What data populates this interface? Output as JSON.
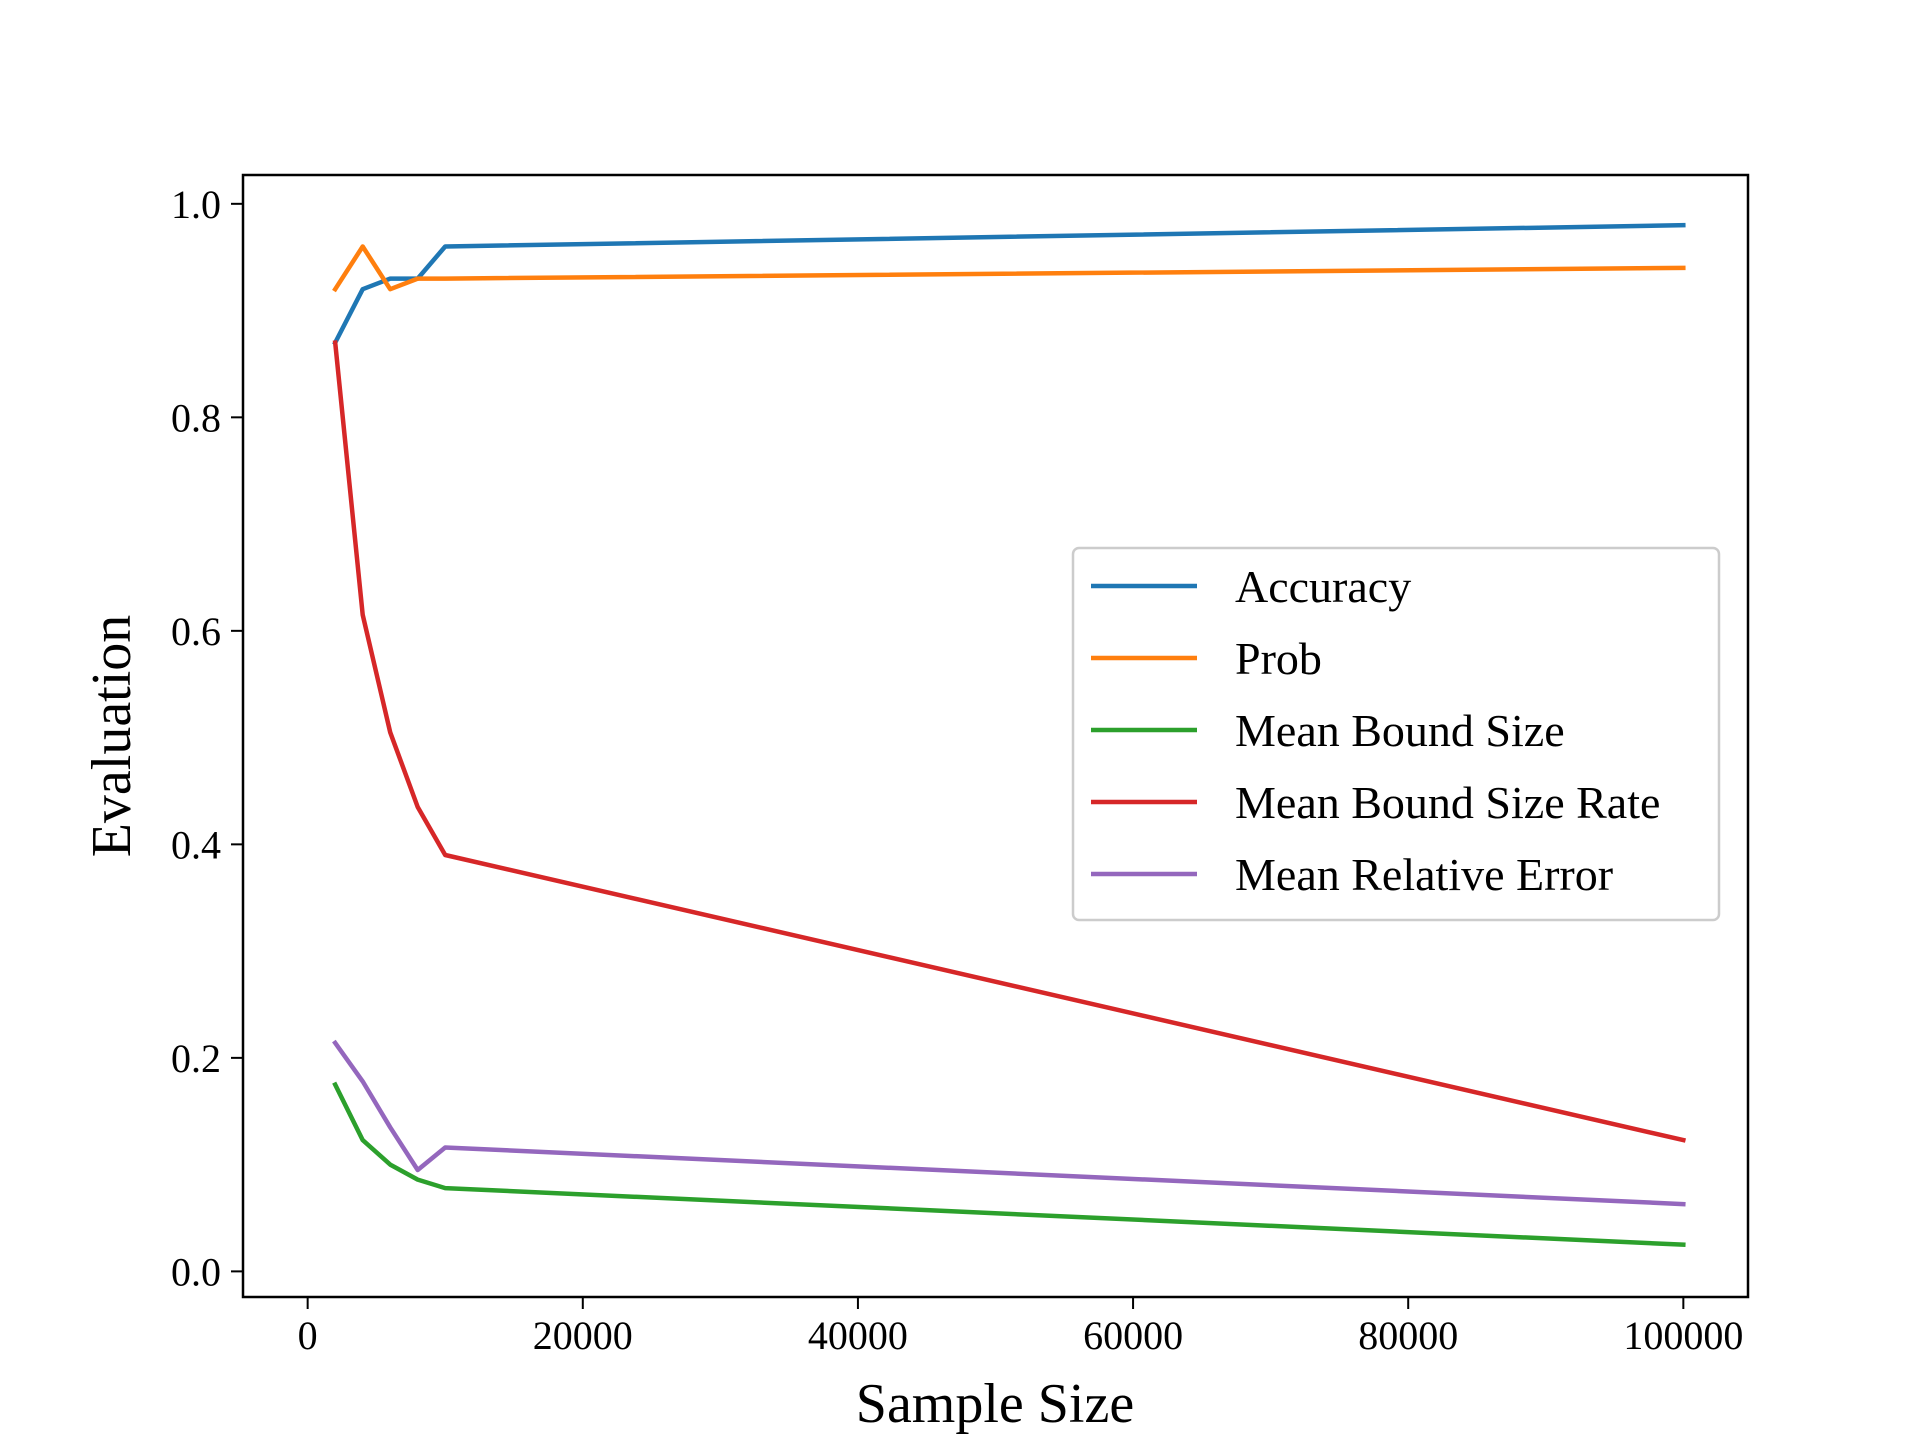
{
  "chart_data": {
    "type": "line",
    "title": "",
    "xlabel": "Sample Size",
    "ylabel": "Evaluation",
    "xlim": [
      -4700,
      104700
    ],
    "ylim": [
      -0.024,
      1.027
    ],
    "xticks": [
      0,
      20000,
      40000,
      60000,
      80000,
      100000
    ],
    "xtick_labels": [
      "0",
      "20000",
      "40000",
      "60000",
      "80000",
      "100000"
    ],
    "yticks": [
      0.0,
      0.2,
      0.4,
      0.6,
      0.8,
      1.0
    ],
    "ytick_labels": [
      "0.0",
      "0.2",
      "0.4",
      "0.6",
      "0.8",
      "1.0"
    ],
    "grid": false,
    "legend_position": "center-right",
    "x": [
      2000,
      4000,
      6000,
      8000,
      10000,
      100000
    ],
    "series": [
      {
        "name": "Accuracy",
        "color": "#1f77b4",
        "values": [
          0.87,
          0.92,
          0.93,
          0.93,
          0.96,
          0.98
        ]
      },
      {
        "name": "Prob",
        "color": "#ff7f0e",
        "values": [
          0.92,
          0.96,
          0.92,
          0.93,
          0.93,
          0.94
        ]
      },
      {
        "name": "Mean Bound Size",
        "color": "#2ca02c",
        "values": [
          0.175,
          0.123,
          0.1,
          0.086,
          0.078,
          0.025
        ]
      },
      {
        "name": "Mean Bound Size Rate",
        "color": "#d62728",
        "values": [
          0.87,
          0.615,
          0.505,
          0.435,
          0.39,
          0.123
        ]
      },
      {
        "name": "Mean Relative Error",
        "color": "#9467bd",
        "values": [
          0.214,
          0.178,
          0.135,
          0.095,
          0.116,
          0.063
        ]
      }
    ]
  }
}
